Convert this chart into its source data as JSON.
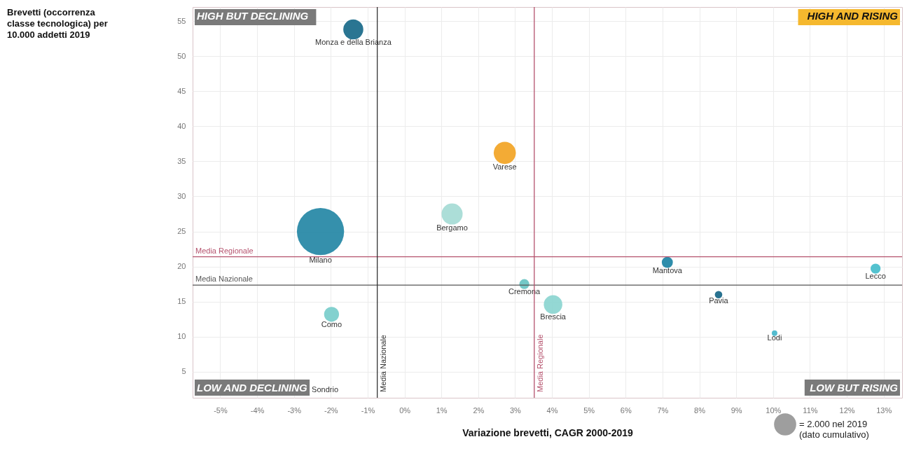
{
  "chart_data": {
    "type": "bubble",
    "xlabel": "Variazione brevetti, CAGR 2000-2019",
    "xlim": [
      -5.75,
      13.5
    ],
    "ylim": [
      1.3,
      57
    ],
    "xticks": [
      {
        "value": -5,
        "label": "-5%"
      },
      {
        "value": -4,
        "label": "-4%"
      },
      {
        "value": -3,
        "label": "-3%"
      },
      {
        "value": -2,
        "label": "-2%"
      },
      {
        "value": -1,
        "label": "-1%"
      },
      {
        "value": 0,
        "label": "0%"
      },
      {
        "value": 1,
        "label": "1%"
      },
      {
        "value": 2,
        "label": "2%"
      },
      {
        "value": 3,
        "label": "3%"
      },
      {
        "value": 4,
        "label": "4%"
      },
      {
        "value": 5,
        "label": "5%"
      },
      {
        "value": 6,
        "label": "6%"
      },
      {
        "value": 7,
        "label": "7%"
      },
      {
        "value": 8,
        "label": "8%"
      },
      {
        "value": 9,
        "label": "9%"
      },
      {
        "value": 10,
        "label": "10%"
      },
      {
        "value": 11,
        "label": "11%"
      },
      {
        "value": 12,
        "label": "12%"
      },
      {
        "value": 13,
        "label": "13%"
      }
    ],
    "yticks": [
      5,
      10,
      15,
      20,
      25,
      30,
      35,
      40,
      45,
      50,
      55
    ],
    "grid": true,
    "size_legend": [
      {
        "value": 2000,
        "label": "= 2.000 nel 2019\n(dato cumulativo)"
      }
    ],
    "series": [
      {
        "name": "Monza e della Brianza",
        "color": "#1f6e8c",
        "x": [
          -1.39
        ],
        "values": [
          53.8
        ],
        "sizes": [
          1800
        ]
      },
      {
        "name": "Milano",
        "color": "#2a8aa8",
        "x": [
          -2.28
        ],
        "values": [
          25.0
        ],
        "sizes": [
          10000
        ]
      },
      {
        "name": "Bergamo",
        "color": "#a8dcd6",
        "x": [
          1.29
        ],
        "values": [
          27.5
        ],
        "sizes": [
          2000
        ]
      },
      {
        "name": "Varese",
        "color": "#f2a62a",
        "x": [
          2.72
        ],
        "values": [
          36.2
        ],
        "sizes": [
          2200
        ]
      },
      {
        "name": "Cremona",
        "color": "#6cc5c4",
        "x": [
          3.25
        ],
        "values": [
          17.5
        ],
        "sizes": [
          450
        ]
      },
      {
        "name": "Brescia",
        "color": "#8ed6d2",
        "x": [
          4.03
        ],
        "values": [
          14.6
        ],
        "sizes": [
          1550
        ]
      },
      {
        "name": "Como",
        "color": "#7ccfcc",
        "x": [
          -1.98
        ],
        "values": [
          13.2
        ],
        "sizes": [
          1000
        ]
      },
      {
        "name": "Mantova",
        "color": "#2387a6",
        "x": [
          7.13
        ],
        "values": [
          20.6
        ],
        "sizes": [
          550
        ]
      },
      {
        "name": "Pavia",
        "color": "#1d6a8a",
        "x": [
          8.52
        ],
        "values": [
          16.0
        ],
        "sizes": [
          250
        ]
      },
      {
        "name": "Lodi",
        "color": "#4ab8cc",
        "x": [
          10.04
        ],
        "values": [
          10.5
        ],
        "sizes": [
          140
        ]
      },
      {
        "name": "Lecco",
        "color": "#4bbfcc",
        "x": [
          12.78
        ],
        "values": [
          19.7
        ],
        "sizes": [
          450
        ]
      }
    ],
    "ref_lines": [
      {
        "axis": "y",
        "value": 21.4,
        "label": "Media Regionale",
        "color": "#b5536e"
      },
      {
        "axis": "y",
        "value": 17.35,
        "label": "Media Nazionale",
        "color": "#555555"
      },
      {
        "axis": "x",
        "value": -0.74,
        "label": "Media Nazionale",
        "color": "#333333"
      },
      {
        "axis": "x",
        "value": 3.52,
        "label": "Media Regionale",
        "color": "#b5536e"
      }
    ],
    "annotations": [
      "Brevetti (occorrenza classe tecnologica) per 10.000 addetti 2019",
      "HIGH BUT DECLINING",
      "HIGH AND RISING",
      "LOW AND DECLINING",
      "LOW BUT RISING",
      "Sondrio"
    ]
  }
}
